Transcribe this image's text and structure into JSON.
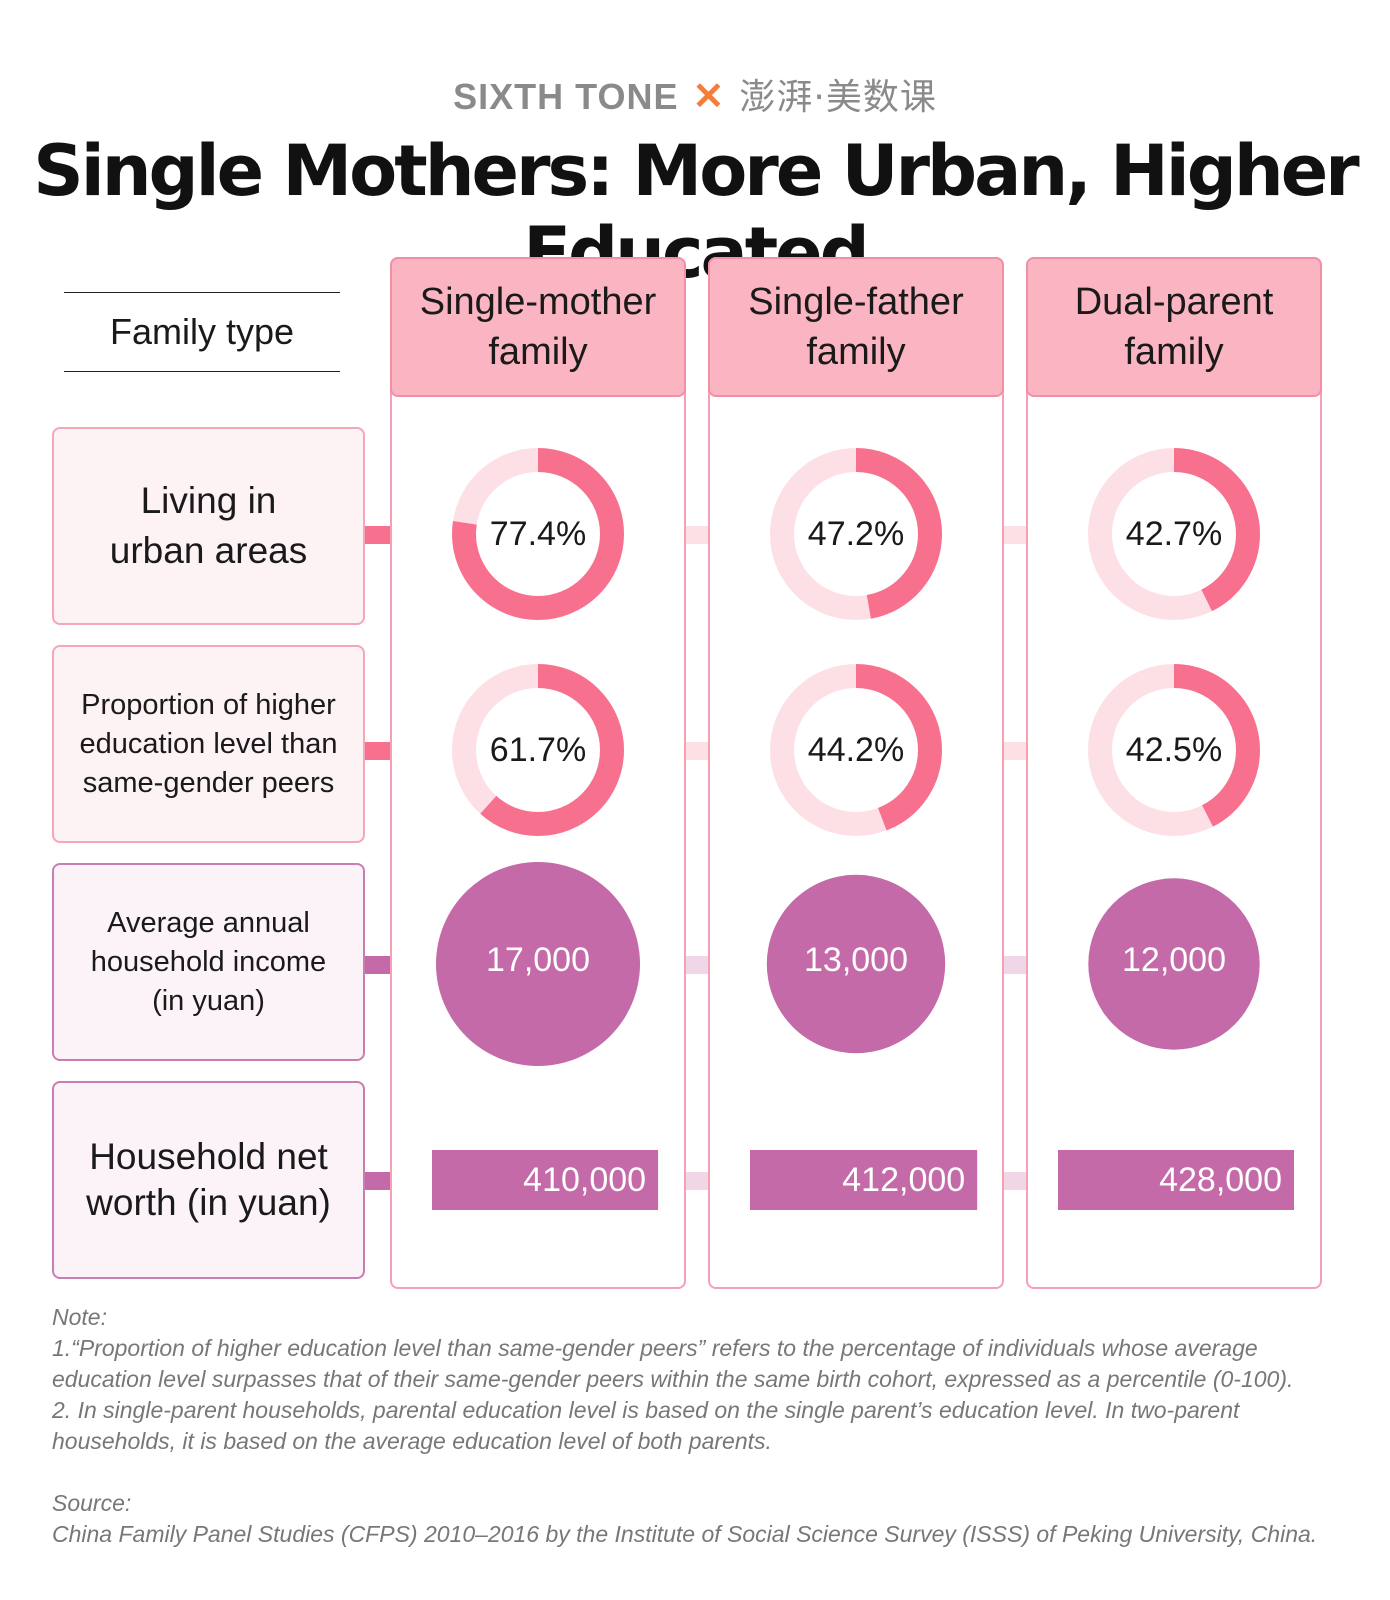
{
  "brand": {
    "left": "SIXTH TONE",
    "cross": "✕",
    "right": "澎湃·美数课"
  },
  "title": "Single Mothers: More Urban, Higher Educated",
  "header_label": "Family type",
  "colors": {
    "ring_strong": "#f7718e",
    "ring_light": "#fde0e6",
    "circle": "#c46aa8",
    "bar": "#c46aa8",
    "header_fill": "#fbb4c2"
  },
  "chart_data": {
    "type": "table",
    "categories": [
      "Single-mother\nfamily",
      "Single-father\nfamily",
      "Dual-parent\nfamily"
    ],
    "rows": [
      {
        "label": "Living in\nurban areas",
        "kind": "donut",
        "unit": "%",
        "values": [
          77.4,
          47.2,
          42.7
        ],
        "display": [
          "77.4%",
          "47.2%",
          "42.7%"
        ]
      },
      {
        "label": "Proportion of higher\neducation level than\nsame-gender peers",
        "kind": "donut",
        "unit": "%",
        "values": [
          61.7,
          44.2,
          42.5
        ],
        "display": [
          "61.7%",
          "44.2%",
          "42.5%"
        ]
      },
      {
        "label": "Average annual\nhousehold income\n(in yuan)",
        "kind": "bubble",
        "values": [
          17000,
          13000,
          12000
        ],
        "display": [
          "17,000",
          "13,000",
          "12,000"
        ]
      },
      {
        "label": "Household net\nworth (in yuan)",
        "kind": "bar",
        "values": [
          410000,
          412000,
          428000
        ],
        "display": [
          "410,000",
          "412,000",
          "428,000"
        ]
      }
    ]
  },
  "notes": {
    "note_label": "Note:",
    "note_1a": "1.“Proportion of higher education level than same-gender peers” refers to the percentage of individuals whose average",
    "note_1b": "education level surpasses that of their same-gender peers within the same birth cohort, expressed as a percentile (0-100).",
    "note_2a": "2. In single-parent households, parental education level is based on the single parent’s education level. In two-parent",
    "note_2b": "households, it is based on the average education level of both parents.",
    "source_label": "Source:",
    "source_text": "China Family Panel Studies (CFPS) 2010–2016 by the Institute of Social Science Survey (ISSS) of Peking University, China."
  }
}
